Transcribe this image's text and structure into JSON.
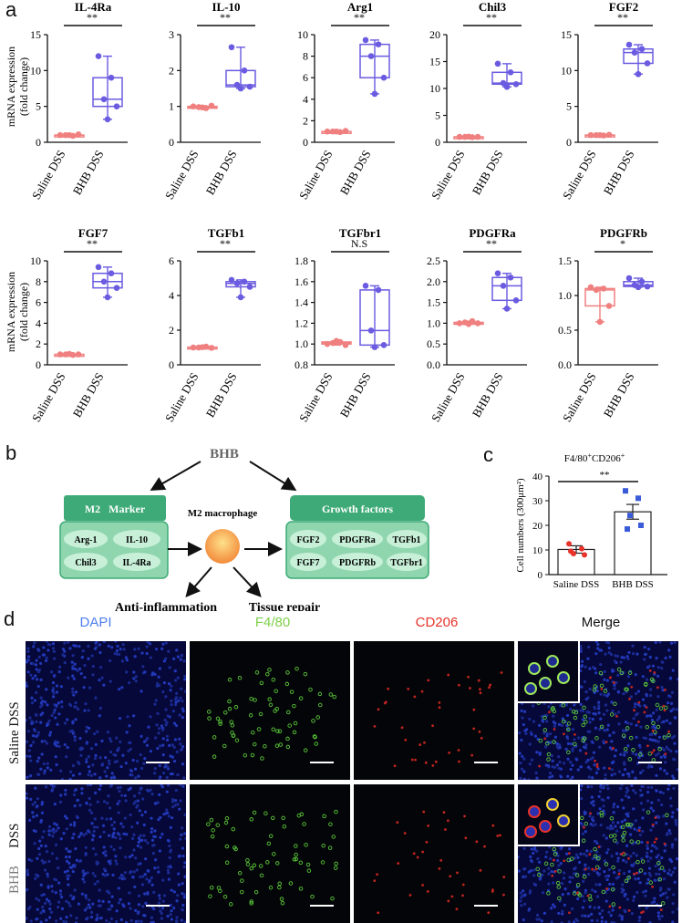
{
  "panels": {
    "a": "a",
    "b": "b",
    "c": "c",
    "d": "d"
  },
  "panel_a": {
    "ylabel_line1": "mRNA expression",
    "ylabel_line2": "(fold change)",
    "groups": [
      "Saline DSS",
      "BHB DSS"
    ],
    "colors": {
      "saline": "#f08080",
      "bhb": "#6a5be0"
    }
  },
  "chart_data": [
    {
      "type": "box",
      "title": "IL-4Ra",
      "significance": "**",
      "ylim": [
        0,
        15
      ],
      "yticks": [
        0,
        5,
        10,
        15
      ],
      "categories": [
        "Saline DSS",
        "BHB DSS"
      ],
      "series": [
        {
          "name": "Saline DSS",
          "values": [
            1.0,
            0.9,
            1.0,
            1.1,
            1.0
          ]
        },
        {
          "name": "BHB DSS",
          "values": [
            12.0,
            9.0,
            6.0,
            5.0,
            3.2
          ]
        }
      ]
    },
    {
      "type": "box",
      "title": "IL-10",
      "significance": "**",
      "ylim": [
        0,
        3
      ],
      "yticks": [
        0,
        1,
        2,
        3
      ],
      "categories": [
        "Saline DSS",
        "BHB DSS"
      ],
      "series": [
        {
          "name": "Saline DSS",
          "values": [
            1.0,
            0.95,
            0.98,
            1.02,
            0.97
          ]
        },
        {
          "name": "BHB DSS",
          "values": [
            2.65,
            2.0,
            1.6,
            1.55,
            1.5
          ]
        }
      ]
    },
    {
      "type": "box",
      "title": "Arg1",
      "significance": "**",
      "ylim": [
        0,
        10
      ],
      "yticks": [
        0,
        2,
        4,
        6,
        8,
        10
      ],
      "categories": [
        "Saline DSS",
        "BHB DSS"
      ],
      "series": [
        {
          "name": "Saline DSS",
          "values": [
            1.0,
            0.95,
            1.0,
            1.05,
            1.0
          ]
        },
        {
          "name": "BHB DSS",
          "values": [
            9.5,
            9.1,
            8.0,
            6.0,
            4.5
          ]
        }
      ]
    },
    {
      "type": "box",
      "title": "Chil3",
      "significance": "**",
      "ylim": [
        0,
        20
      ],
      "yticks": [
        0,
        5,
        10,
        15,
        20
      ],
      "categories": [
        "Saline DSS",
        "BHB DSS"
      ],
      "series": [
        {
          "name": "Saline DSS",
          "values": [
            1.0,
            0.95,
            1.0,
            1.0,
            1.05
          ]
        },
        {
          "name": "BHB DSS",
          "values": [
            14.6,
            13.0,
            11.0,
            10.8,
            10.3
          ]
        }
      ]
    },
    {
      "type": "box",
      "title": "FGF2",
      "significance": "**",
      "ylim": [
        0,
        15
      ],
      "yticks": [
        0,
        5,
        10,
        15
      ],
      "categories": [
        "Saline DSS",
        "BHB DSS"
      ],
      "series": [
        {
          "name": "Saline DSS",
          "values": [
            1.0,
            0.95,
            1.0,
            1.05,
            1.0
          ]
        },
        {
          "name": "BHB DSS",
          "values": [
            13.6,
            13.0,
            12.5,
            11.0,
            9.5
          ]
        }
      ]
    },
    {
      "type": "box",
      "title": "FGF7",
      "significance": "**",
      "ylim": [
        0,
        10
      ],
      "yticks": [
        0,
        2,
        4,
        6,
        8,
        10
      ],
      "categories": [
        "Saline DSS",
        "BHB DSS"
      ],
      "series": [
        {
          "name": "Saline DSS",
          "values": [
            1.0,
            0.95,
            1.0,
            1.0,
            1.05
          ]
        },
        {
          "name": "BHB DSS",
          "values": [
            9.4,
            8.8,
            8.0,
            7.4,
            6.5
          ]
        }
      ]
    },
    {
      "type": "box",
      "title": "TGFb1",
      "significance": "**",
      "ylim": [
        0,
        6
      ],
      "yticks": [
        0,
        2,
        4,
        6
      ],
      "categories": [
        "Saline DSS",
        "BHB DSS"
      ],
      "series": [
        {
          "name": "Saline DSS",
          "values": [
            1.0,
            1.05,
            1.0,
            0.98,
            1.02
          ]
        },
        {
          "name": "BHB DSS",
          "values": [
            4.9,
            4.8,
            4.7,
            4.5,
            3.9
          ]
        }
      ]
    },
    {
      "type": "box",
      "title": "TGFbr1",
      "significance": "N.S",
      "ylim": [
        0.8,
        1.8
      ],
      "yticks": [
        0.8,
        1.0,
        1.2,
        1.4,
        1.6,
        1.8
      ],
      "categories": [
        "Saline DSS",
        "BHB DSS"
      ],
      "series": [
        {
          "name": "Saline DSS",
          "values": [
            1.0,
            1.02,
            1.01,
            0.99,
            1.03
          ]
        },
        {
          "name": "BHB DSS",
          "values": [
            1.56,
            1.52,
            1.13,
            0.99,
            0.97
          ]
        }
      ]
    },
    {
      "type": "box",
      "title": "PDGFRa",
      "significance": "**",
      "ylim": [
        0,
        2.5
      ],
      "yticks": [
        0,
        0.5,
        1.0,
        1.5,
        2.0,
        2.5
      ],
      "categories": [
        "Saline DSS",
        "BHB DSS"
      ],
      "series": [
        {
          "name": "Saline DSS",
          "values": [
            1.0,
            1.05,
            1.02,
            1.0,
            0.98
          ]
        },
        {
          "name": "BHB DSS",
          "values": [
            2.2,
            2.1,
            1.9,
            1.55,
            1.35
          ]
        }
      ]
    },
    {
      "type": "box",
      "title": "PDGFRb",
      "significance": "*",
      "ylim": [
        0,
        1.5
      ],
      "yticks": [
        0,
        0.5,
        1.0,
        1.5
      ],
      "categories": [
        "Saline DSS",
        "BHB DSS"
      ],
      "series": [
        {
          "name": "Saline DSS",
          "values": [
            1.12,
            1.1,
            1.08,
            0.85,
            0.62
          ]
        },
        {
          "name": "BHB DSS",
          "values": [
            1.25,
            1.2,
            1.15,
            1.13,
            1.12
          ]
        }
      ]
    },
    {
      "type": "bar",
      "title": "F4/80+CD206+",
      "significance": "**",
      "ylabel": "Cell numbers (300μm²)",
      "ylim": [
        0,
        40
      ],
      "yticks": [
        0,
        10,
        20,
        30,
        40
      ],
      "categories": [
        "Saline DSS",
        "BHB DSS"
      ],
      "values": [
        10.2,
        25.5
      ],
      "errors": [
        1.5,
        3.0
      ],
      "points": [
        [
          12.5,
          10.5,
          8.5,
          8.0,
          9.5
        ],
        [
          34.0,
          31.0,
          24.0,
          20.0,
          18.5
        ]
      ]
    }
  ],
  "panel_b": {
    "bhb": "BHB",
    "m2_marker_title": "M2   Marker",
    "m2_markers": [
      "Arg-1",
      "IL-10",
      "Chil3",
      "IL-4Ra"
    ],
    "macrophage": "M2 macrophage",
    "growth_title": "Growth factors",
    "growth_factors": [
      "FGF2",
      "PDGFRa",
      "TGFb1",
      "FGF7",
      "PDGFRb",
      "TGFbr1"
    ],
    "anti_inflammation": "Anti-inflammation",
    "tissue_repair": "Tissue repair",
    "colors": {
      "box_dark": "#3daa77",
      "box_light": "#8fd6ae",
      "pill": "#c8f0d8"
    }
  },
  "panel_c": {
    "title_main": "F4/80",
    "title_sup1": "+",
    "title_mid": "CD206",
    "title_sup2": "+"
  },
  "panel_d": {
    "channels": [
      {
        "label": "DAPI",
        "color": "#4f7ef0"
      },
      {
        "label": "F4/80",
        "color": "#7ed04a"
      },
      {
        "label": "CD206",
        "color": "#e8322a"
      },
      {
        "label": "Merge",
        "color": "#111111"
      }
    ],
    "rows": [
      {
        "label": "Saline DSS"
      },
      {
        "label_dss": "DSS",
        "label_bhb": "BHB"
      }
    ]
  }
}
